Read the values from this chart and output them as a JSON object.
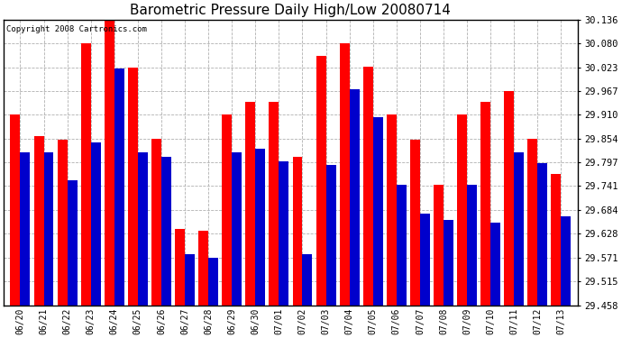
{
  "title": "Barometric Pressure Daily High/Low 20080714",
  "copyright": "Copyright 2008 Cartronics.com",
  "dates": [
    "06/20",
    "06/21",
    "06/22",
    "06/23",
    "06/24",
    "06/25",
    "06/26",
    "06/27",
    "06/28",
    "06/29",
    "06/30",
    "07/01",
    "07/02",
    "07/03",
    "07/04",
    "07/05",
    "07/06",
    "07/07",
    "07/08",
    "07/09",
    "07/10",
    "07/11",
    "07/12",
    "07/13"
  ],
  "highs": [
    29.91,
    29.86,
    29.85,
    30.08,
    30.136,
    30.023,
    29.854,
    29.64,
    29.635,
    29.91,
    29.94,
    29.94,
    29.81,
    30.05,
    30.08,
    30.025,
    29.91,
    29.85,
    29.745,
    29.91,
    29.94,
    29.967,
    29.854,
    29.77
  ],
  "lows": [
    29.82,
    29.82,
    29.755,
    29.845,
    30.02,
    29.82,
    29.81,
    29.58,
    29.571,
    29.82,
    29.83,
    29.8,
    29.58,
    29.79,
    29.97,
    29.905,
    29.745,
    29.675,
    29.66,
    29.745,
    29.655,
    29.82,
    29.795,
    29.67
  ],
  "y_ticks": [
    29.458,
    29.515,
    29.571,
    29.628,
    29.684,
    29.741,
    29.797,
    29.854,
    29.91,
    29.967,
    30.023,
    30.08,
    30.136
  ],
  "ymin": 29.458,
  "ymax": 30.136,
  "high_color": "#ff0000",
  "low_color": "#0000cc",
  "bg_color": "#ffffff",
  "grid_color": "#b0b0b0",
  "bar_width": 0.42
}
